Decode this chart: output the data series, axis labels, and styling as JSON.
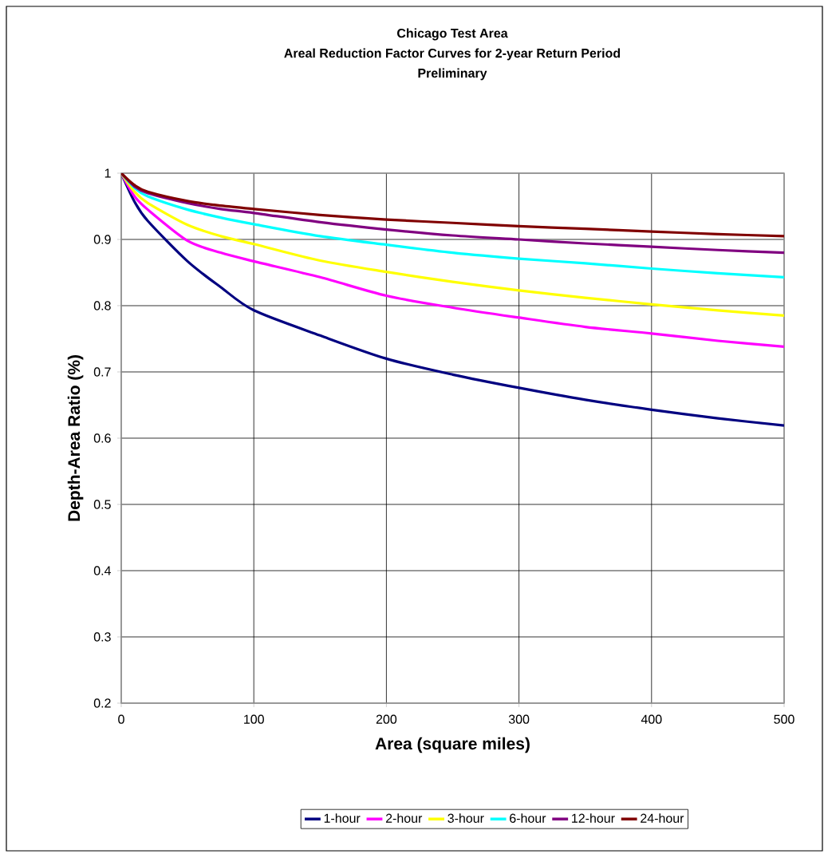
{
  "chart_data": {
    "type": "line",
    "title": "Chicago Test Area",
    "subtitle": "Areal Reduction Factor Curves for 2-year Return Period",
    "annotations": [
      "Preliminary"
    ],
    "xlabel": "Area (square miles)",
    "ylabel": "Depth-Area Ratio (%)",
    "x": [
      0,
      10,
      20,
      50,
      75,
      100,
      150,
      200,
      250,
      300,
      350,
      400,
      450,
      500
    ],
    "series": [
      {
        "name": "1-hour",
        "color": "#000080",
        "values": [
          1,
          0.957,
          0.928,
          0.867,
          0.828,
          0.793,
          0.755,
          0.72,
          0.696,
          0.676,
          0.658,
          0.643,
          0.63,
          0.619
        ]
      },
      {
        "name": "2-hour",
        "color": "#ff00ff",
        "values": [
          1,
          0.965,
          0.945,
          0.898,
          0.88,
          0.867,
          0.843,
          0.815,
          0.797,
          0.782,
          0.768,
          0.758,
          0.747,
          0.738
        ]
      },
      {
        "name": "3-hour",
        "color": "#ffff00",
        "values": [
          1,
          0.972,
          0.955,
          0.922,
          0.905,
          0.893,
          0.868,
          0.851,
          0.836,
          0.823,
          0.812,
          0.802,
          0.793,
          0.785
        ]
      },
      {
        "name": "6-hour",
        "color": "#00ffff",
        "values": [
          1,
          0.978,
          0.965,
          0.945,
          0.933,
          0.923,
          0.905,
          0.892,
          0.88,
          0.871,
          0.864,
          0.856,
          0.849,
          0.843
        ]
      },
      {
        "name": "12-hour",
        "color": "#800080",
        "values": [
          1,
          0.98,
          0.97,
          0.955,
          0.946,
          0.94,
          0.926,
          0.915,
          0.906,
          0.9,
          0.894,
          0.889,
          0.884,
          0.88
        ]
      },
      {
        "name": "24-hour",
        "color": "#800000",
        "values": [
          1,
          0.982,
          0.972,
          0.958,
          0.951,
          0.946,
          0.937,
          0.93,
          0.925,
          0.92,
          0.916,
          0.912,
          0.908,
          0.905
        ]
      }
    ],
    "xlim": [
      0,
      500
    ],
    "xticks": [
      0,
      100,
      200,
      300,
      400,
      500
    ],
    "ylim": [
      0.2,
      1
    ],
    "yticks": [
      0.2,
      0.3,
      0.4,
      0.5,
      0.6,
      0.7,
      0.8,
      0.9,
      1
    ],
    "grid": true,
    "legend": "bottom",
    "line_style": "solid"
  }
}
